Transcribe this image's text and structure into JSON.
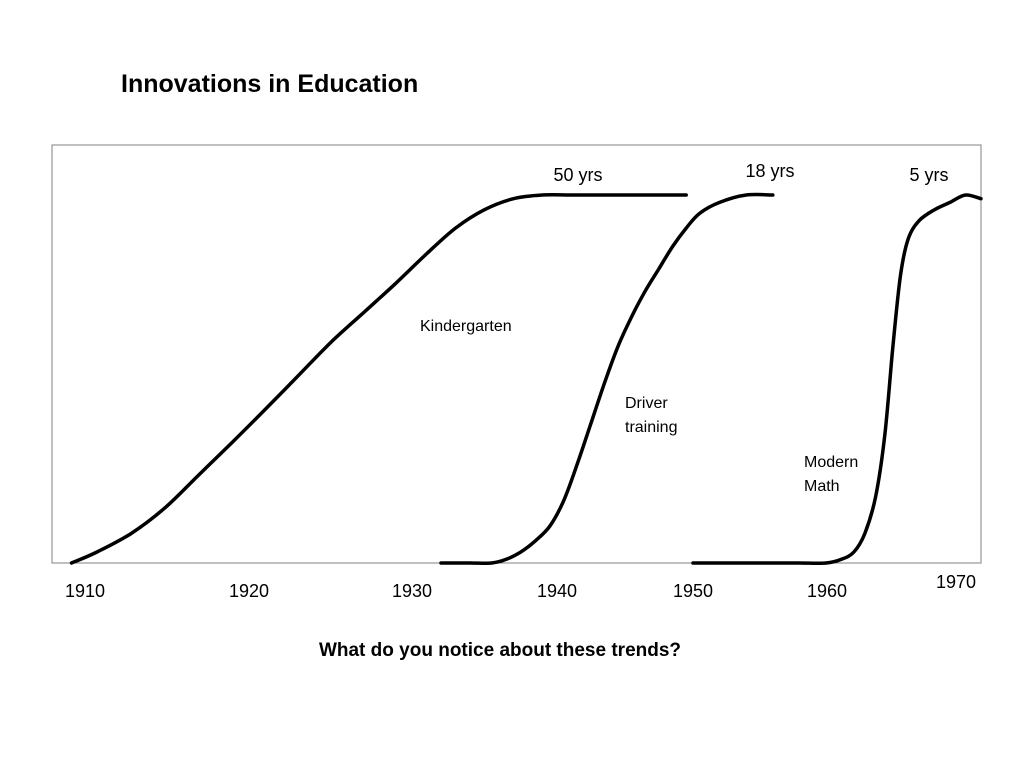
{
  "title": "Innovations in Education",
  "question": "What do you notice about these trends?",
  "chart_data": {
    "type": "line",
    "title": "",
    "xlabel": "",
    "ylabel": "",
    "xlim": [
      1910,
      1970
    ],
    "ylim": [
      0,
      100
    ],
    "grid": false,
    "legend": "none",
    "x_ticks": [
      {
        "value": 1910,
        "label": "1910"
      },
      {
        "value": 1920,
        "label": "1920"
      },
      {
        "value": 1930,
        "label": "1930"
      },
      {
        "value": 1940,
        "label": "1940"
      },
      {
        "value": 1950,
        "label": "1950"
      },
      {
        "value": 1960,
        "label": "1960"
      },
      {
        "value": 1970,
        "label": "1970"
      }
    ],
    "series": [
      {
        "name": "Kindergarten",
        "duration_label": "50 yrs",
        "x": [
          1909.5,
          1911,
          1913,
          1915,
          1917,
          1919,
          1921,
          1923,
          1925,
          1927,
          1929,
          1931,
          1933,
          1935,
          1937,
          1939,
          1941,
          1943,
          1945,
          1947,
          1949.5
        ],
        "y": [
          0,
          3,
          8,
          15,
          24,
          33,
          42,
          51,
          60,
          68,
          76,
          84,
          91,
          96,
          99,
          100,
          100,
          100,
          100,
          100,
          100
        ]
      },
      {
        "name": "Driver training",
        "duration_label": "18 yrs",
        "x": [
          1932,
          1934,
          1935.5,
          1936.5,
          1937.5,
          1938.5,
          1939.5,
          1940.5,
          1941.5,
          1942.5,
          1943.5,
          1944.5,
          1945.5,
          1946.5,
          1947.5,
          1948.5,
          1949.5,
          1950.5,
          1952,
          1954,
          1956
        ],
        "y": [
          0,
          0,
          0,
          1,
          3,
          6,
          10,
          17,
          27,
          38,
          49,
          59,
          67,
          74,
          80,
          86,
          91,
          95,
          98,
          100,
          100
        ]
      },
      {
        "name": "Modern Math",
        "duration_label": "5 yrs",
        "x": [
          1950,
          1952,
          1954,
          1956,
          1958,
          1960,
          1961,
          1961.8,
          1962.5,
          1963.2,
          1963.8,
          1964.3,
          1964.8,
          1965.3,
          1966,
          1967,
          1968,
          1969,
          1970
        ],
        "y": [
          0,
          0,
          0,
          0,
          0,
          0,
          1,
          3,
          8,
          18,
          35,
          58,
          78,
          88,
          93,
          96,
          98,
          100,
          99
        ]
      }
    ]
  }
}
